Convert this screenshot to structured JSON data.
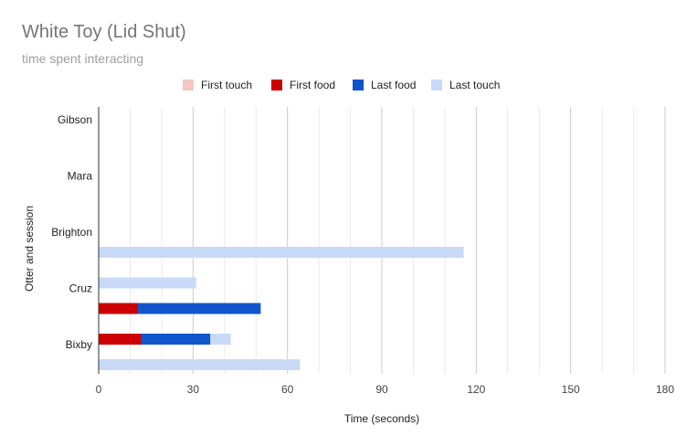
{
  "chart_data": {
    "type": "bar",
    "orientation": "horizontal",
    "stacked": true,
    "title": "White Toy (Lid Shut)",
    "subtitle": "time spent interacting",
    "xlabel": "Time (seconds)",
    "ylabel": "Otter and session",
    "xlim": [
      0,
      180
    ],
    "xticks": [
      0,
      30,
      60,
      90,
      120,
      150,
      180
    ],
    "grid": true,
    "legend_position": "top",
    "categories": [
      "Gibson",
      "Mara",
      "Brighton",
      "Cruz",
      "Bixby"
    ],
    "bars": [
      {
        "otter": "Gibson",
        "session": 1,
        "values": [
          0,
          0,
          0,
          0
        ]
      },
      {
        "otter": "Gibson",
        "session": 2,
        "values": [
          0,
          0,
          0,
          0
        ]
      },
      {
        "otter": "Mara",
        "session": 1,
        "values": [
          0,
          0,
          0,
          0
        ]
      },
      {
        "otter": "Mara",
        "session": 2,
        "values": [
          0,
          0,
          0,
          0
        ]
      },
      {
        "otter": "Brighton",
        "session": 1,
        "values": [
          0,
          0,
          0,
          0
        ]
      },
      {
        "otter": "Brighton",
        "session": 2,
        "values": [
          0,
          0,
          0,
          116
        ]
      },
      {
        "otter": "Cruz",
        "session": 1,
        "values": [
          0,
          0,
          0,
          31
        ]
      },
      {
        "otter": "Cruz",
        "session": 2,
        "values": [
          0,
          12.5,
          39,
          0
        ]
      },
      {
        "otter": "Bixby",
        "session": 1,
        "values": [
          0,
          13.5,
          22,
          6.5
        ]
      },
      {
        "otter": "Bixby",
        "session": 2,
        "values": [
          0,
          0,
          0,
          64
        ]
      }
    ],
    "series": [
      {
        "name": "First touch",
        "color": "#f4c7c3"
      },
      {
        "name": "First food",
        "color": "#cc0000"
      },
      {
        "name": "Last food",
        "color": "#1155cc"
      },
      {
        "name": "Last touch",
        "color": "#c9daf8"
      }
    ]
  }
}
